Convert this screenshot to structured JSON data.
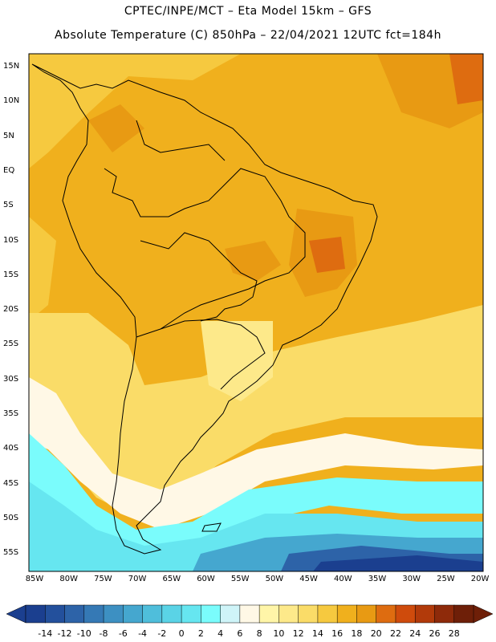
{
  "header": {
    "line1": "CPTEC/INPE/MCT –  Eta Model 15km – GFS",
    "line2": "Absolute Temperature (C) 850hPa – 22/04/2021 12UTC fct=184h"
  },
  "map": {
    "region": "South America",
    "lat_labels": [
      "15N",
      "10N",
      "5N",
      "EQ",
      "5S",
      "10S",
      "15S",
      "20S",
      "25S",
      "30S",
      "35S",
      "40S",
      "45S",
      "50S",
      "55S"
    ],
    "lon_labels": [
      "85W",
      "80W",
      "75W",
      "70W",
      "65W",
      "60W",
      "55W",
      "50W",
      "45W",
      "40W",
      "35W",
      "30W",
      "25W",
      "20W"
    ]
  },
  "colorbar": {
    "labels": [
      "-14",
      "-12",
      "-10",
      "-8",
      "-6",
      "-4",
      "-2",
      "0",
      "2",
      "4",
      "6",
      "8",
      "10",
      "12",
      "14",
      "16",
      "18",
      "20",
      "22",
      "24",
      "26",
      "28"
    ],
    "colors": [
      "#1b3f8f",
      "#23509c",
      "#2d63a8",
      "#3579b5",
      "#3d90c2",
      "#45a7cf",
      "#4fbedb",
      "#5ad3e6",
      "#66e6f0",
      "#7afcfc",
      "#cff4f8",
      "#fff8e6",
      "#fff5a8",
      "#fde98a",
      "#fadc68",
      "#f6c93f",
      "#f0b01d",
      "#e89a13",
      "#de6c10",
      "#cf4b0c",
      "#b23a0a",
      "#8e2a0a",
      "#6e1f08"
    ]
  }
}
